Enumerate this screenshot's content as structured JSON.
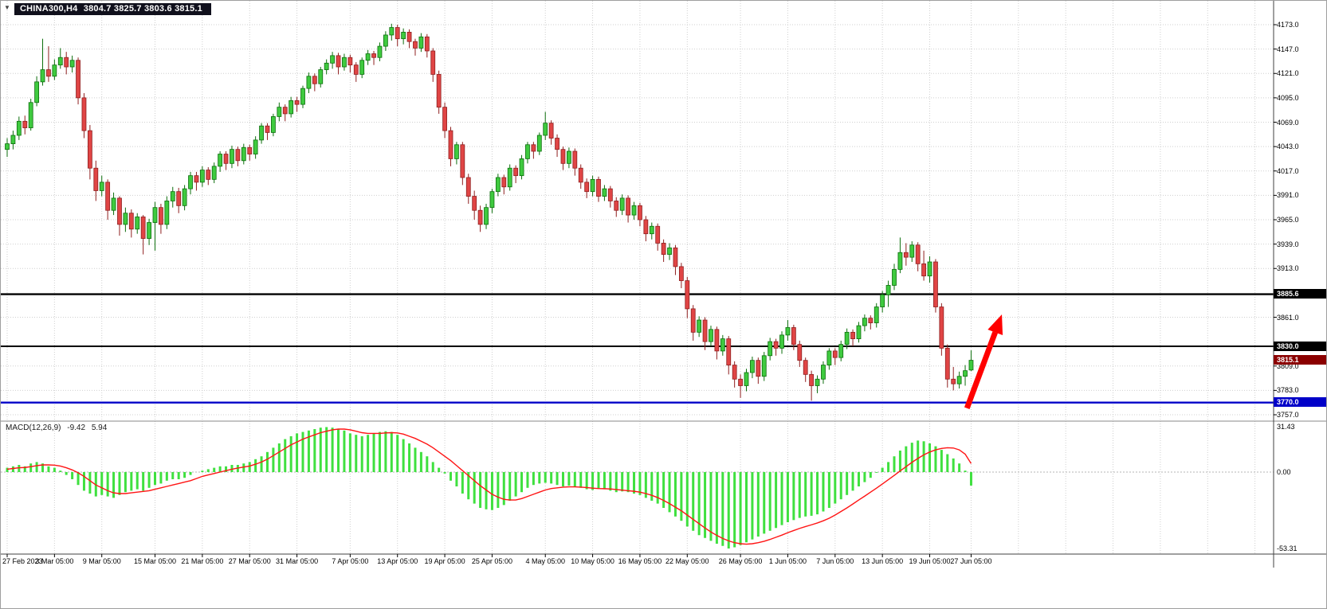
{
  "window": {
    "symbol": "CHINA300,H4",
    "ohlc_text": "3804.7 3825.7 3803.6 3815.1"
  },
  "indicator": {
    "label": "MACD(12,26,9)",
    "main_text": "-9.42",
    "signal_text": "5.94"
  },
  "colors": {
    "bull": "#3fca3f",
    "bull_border": "#0c6e0c",
    "bear": "#e04545",
    "bear_border": "#8f1f1f",
    "macd_hist": "#3fe03f",
    "macd_signal": "#ff1414",
    "grid": "#cfcfcf",
    "level_black": "#000000",
    "level_blue": "#0000c8",
    "tag_black_bg": "#000000",
    "tag_current_bg": "#8b0000",
    "tag_blue_bg": "#0000c8",
    "arrow": "#ff0000",
    "axis_text": "#000000",
    "title_bg": "#10101c",
    "title_text": "#ffffff"
  },
  "chart_data": {
    "type": "candlestick",
    "title": "CHINA300,H4",
    "timeframe": "H4",
    "current_bar": {
      "open": 3804.7,
      "high": 3825.7,
      "low": 3803.6,
      "close": 3815.1
    },
    "y_axis": {
      "min": 3757.0,
      "max": 4173.0,
      "ticks": [
        4173,
        4147,
        4121,
        4095,
        4069,
        4043,
        4017,
        3991,
        3965,
        3939,
        3913,
        3861,
        3809,
        3783,
        3757
      ],
      "tagged_levels": [
        {
          "value": 3885.6,
          "bg": "#000000"
        },
        {
          "value": 3830.0,
          "bg": "#000000"
        },
        {
          "value": 3815.1,
          "bg": "#8b0000"
        },
        {
          "value": 3770.0,
          "bg": "#0000c8"
        }
      ]
    },
    "horizontal_lines": [
      {
        "price": 3885.6,
        "color": "#000000",
        "width": 2.4
      },
      {
        "price": 3830.0,
        "color": "#000000",
        "width": 2
      },
      {
        "price": 3770.0,
        "color": "#0000c8",
        "width": 2.4
      }
    ],
    "x_axis": {
      "ticks": [
        {
          "label": "27 Feb 2023",
          "i": 0
        },
        {
          "label": "3 Mar 05:00",
          "i": 8
        },
        {
          "label": "9 Mar 05:00",
          "i": 16
        },
        {
          "label": "15 Mar 05:00",
          "i": 25
        },
        {
          "label": "21 Mar 05:00",
          "i": 33
        },
        {
          "label": "27 Mar 05:00",
          "i": 41
        },
        {
          "label": "31 Mar 05:00",
          "i": 49
        },
        {
          "label": "7 Apr 05:00",
          "i": 58
        },
        {
          "label": "13 Apr 05:00",
          "i": 66
        },
        {
          "label": "19 Apr 05:00",
          "i": 74
        },
        {
          "label": "25 Apr 05:00",
          "i": 82
        },
        {
          "label": "4 May 05:00",
          "i": 91
        },
        {
          "label": "10 May 05:00",
          "i": 99
        },
        {
          "label": "16 May 05:00",
          "i": 107
        },
        {
          "label": "22 May 05:00",
          "i": 115
        },
        {
          "label": "26 May 05:00",
          "i": 124
        },
        {
          "label": "1 Jun 05:00",
          "i": 132
        },
        {
          "label": "7 Jun 05:00",
          "i": 140
        },
        {
          "label": "13 Jun 05:00",
          "i": 148
        },
        {
          "label": "19 Jun 05:00",
          "i": 156
        },
        {
          "label": "27 Jun 05:00",
          "i": 163
        }
      ]
    },
    "candles_ohlc": [
      [
        4040,
        4052,
        4032,
        4046
      ],
      [
        4046,
        4060,
        4040,
        4055
      ],
      [
        4055,
        4075,
        4050,
        4070
      ],
      [
        4070,
        4076,
        4056,
        4063
      ],
      [
        4063,
        4094,
        4060,
        4090
      ],
      [
        4090,
        4118,
        4086,
        4112
      ],
      [
        4112,
        4158,
        4108,
        4125
      ],
      [
        4125,
        4150,
        4112,
        4118
      ],
      [
        4118,
        4136,
        4114,
        4130
      ],
      [
        4130,
        4148,
        4126,
        4138
      ],
      [
        4138,
        4144,
        4120,
        4128
      ],
      [
        4128,
        4140,
        4122,
        4135
      ],
      [
        4135,
        4138,
        4088,
        4095
      ],
      [
        4095,
        4100,
        4052,
        4060
      ],
      [
        4060,
        4066,
        4008,
        4020
      ],
      [
        4020,
        4028,
        3985,
        3996
      ],
      [
        3996,
        4012,
        3990,
        4005
      ],
      [
        4005,
        4008,
        3965,
        3975
      ],
      [
        3975,
        3994,
        3970,
        3988
      ],
      [
        3988,
        3990,
        3948,
        3960
      ],
      [
        3960,
        3978,
        3952,
        3972
      ],
      [
        3972,
        3976,
        3946,
        3955
      ],
      [
        3955,
        3972,
        3950,
        3968
      ],
      [
        3968,
        3970,
        3928,
        3945
      ],
      [
        3945,
        3966,
        3938,
        3962
      ],
      [
        3962,
        3984,
        3932,
        3978
      ],
      [
        3978,
        3982,
        3950,
        3960
      ],
      [
        3960,
        3990,
        3955,
        3985
      ],
      [
        3985,
        4000,
        3978,
        3995
      ],
      [
        3995,
        3999,
        3972,
        3980
      ],
      [
        3980,
        4002,
        3975,
        3998
      ],
      [
        3998,
        4016,
        3992,
        4012
      ],
      [
        4012,
        4016,
        3996,
        4005
      ],
      [
        4005,
        4022,
        4000,
        4018
      ],
      [
        4018,
        4021,
        4002,
        4008
      ],
      [
        4008,
        4026,
        4004,
        4022
      ],
      [
        4022,
        4038,
        4016,
        4035
      ],
      [
        4035,
        4038,
        4018,
        4025
      ],
      [
        4025,
        4044,
        4020,
        4040
      ],
      [
        4040,
        4043,
        4022,
        4028
      ],
      [
        4028,
        4046,
        4024,
        4042
      ],
      [
        4042,
        4045,
        4028,
        4035
      ],
      [
        4035,
        4054,
        4030,
        4050
      ],
      [
        4050,
        4068,
        4046,
        4065
      ],
      [
        4065,
        4068,
        4050,
        4058
      ],
      [
        4058,
        4078,
        4054,
        4075
      ],
      [
        4075,
        4090,
        4070,
        4085
      ],
      [
        4085,
        4088,
        4070,
        4078
      ],
      [
        4078,
        4096,
        4074,
        4092
      ],
      [
        4092,
        4096,
        4080,
        4088
      ],
      [
        4088,
        4108,
        4084,
        4105
      ],
      [
        4105,
        4122,
        4100,
        4118
      ],
      [
        4118,
        4121,
        4102,
        4110
      ],
      [
        4110,
        4128,
        4106,
        4125
      ],
      [
        4125,
        4136,
        4120,
        4132
      ],
      [
        4132,
        4144,
        4126,
        4140
      ],
      [
        4140,
        4143,
        4120,
        4128
      ],
      [
        4128,
        4142,
        4124,
        4138
      ],
      [
        4138,
        4141,
        4122,
        4130
      ],
      [
        4130,
        4133,
        4112,
        4120
      ],
      [
        4120,
        4138,
        4116,
        4135
      ],
      [
        4135,
        4146,
        4130,
        4142
      ],
      [
        4142,
        4145,
        4130,
        4138
      ],
      [
        4138,
        4154,
        4134,
        4150
      ],
      [
        4150,
        4166,
        4145,
        4162
      ],
      [
        4162,
        4174,
        4156,
        4170
      ],
      [
        4170,
        4173,
        4150,
        4158
      ],
      [
        4158,
        4169,
        4152,
        4165
      ],
      [
        4165,
        4168,
        4148,
        4155
      ],
      [
        4155,
        4158,
        4140,
        4148
      ],
      [
        4148,
        4164,
        4144,
        4160
      ],
      [
        4160,
        4163,
        4138,
        4145
      ],
      [
        4145,
        4148,
        4112,
        4120
      ],
      [
        4120,
        4124,
        4078,
        4085
      ],
      [
        4085,
        4090,
        4052,
        4060
      ],
      [
        4060,
        4064,
        4022,
        4030
      ],
      [
        4030,
        4048,
        4024,
        4045
      ],
      [
        4045,
        4048,
        4002,
        4010
      ],
      [
        4010,
        4014,
        3982,
        3990
      ],
      [
        3990,
        3996,
        3965,
        3975
      ],
      [
        3975,
        3980,
        3952,
        3960
      ],
      [
        3960,
        3982,
        3955,
        3978
      ],
      [
        3978,
        3998,
        3972,
        3995
      ],
      [
        3995,
        4014,
        3990,
        4010
      ],
      [
        4010,
        4013,
        3992,
        4000
      ],
      [
        4000,
        4024,
        3996,
        4020
      ],
      [
        4020,
        4023,
        4004,
        4012
      ],
      [
        4012,
        4034,
        4008,
        4030
      ],
      [
        4030,
        4048,
        4025,
        4045
      ],
      [
        4045,
        4048,
        4030,
        4038
      ],
      [
        4038,
        4058,
        4034,
        4055
      ],
      [
        4055,
        4080,
        4050,
        4068
      ],
      [
        4068,
        4071,
        4045,
        4052
      ],
      [
        4052,
        4056,
        4032,
        4040
      ],
      [
        4040,
        4043,
        4018,
        4025
      ],
      [
        4025,
        4042,
        4020,
        4038
      ],
      [
        4038,
        4041,
        4012,
        4020
      ],
      [
        4020,
        4024,
        3998,
        4005
      ],
      [
        4005,
        4009,
        3988,
        3995
      ],
      [
        3995,
        4012,
        3990,
        4008
      ],
      [
        4008,
        4011,
        3984,
        3990
      ],
      [
        3990,
        4002,
        3985,
        3998
      ],
      [
        3998,
        4001,
        3978,
        3985
      ],
      [
        3985,
        3989,
        3968,
        3975
      ],
      [
        3975,
        3992,
        3970,
        3988
      ],
      [
        3988,
        3991,
        3962,
        3970
      ],
      [
        3970,
        3984,
        3965,
        3980
      ],
      [
        3980,
        3983,
        3958,
        3965
      ],
      [
        3965,
        3969,
        3942,
        3950
      ],
      [
        3950,
        3962,
        3944,
        3958
      ],
      [
        3958,
        3961,
        3932,
        3940
      ],
      [
        3940,
        3944,
        3920,
        3928
      ],
      [
        3928,
        3940,
        3922,
        3935
      ],
      [
        3935,
        3938,
        3906,
        3915
      ],
      [
        3915,
        3919,
        3892,
        3900
      ],
      [
        3900,
        3904,
        3860,
        3870
      ],
      [
        3870,
        3874,
        3836,
        3845
      ],
      [
        3845,
        3862,
        3840,
        3858
      ],
      [
        3858,
        3861,
        3826,
        3835
      ],
      [
        3835,
        3852,
        3830,
        3848
      ],
      [
        3848,
        3851,
        3816,
        3825
      ],
      [
        3825,
        3842,
        3820,
        3838
      ],
      [
        3838,
        3841,
        3800,
        3810
      ],
      [
        3810,
        3814,
        3786,
        3795
      ],
      [
        3795,
        3800,
        3775,
        3788
      ],
      [
        3788,
        3806,
        3782,
        3802
      ],
      [
        3802,
        3819,
        3796,
        3815
      ],
      [
        3815,
        3818,
        3790,
        3798
      ],
      [
        3798,
        3824,
        3793,
        3820
      ],
      [
        3820,
        3839,
        3815,
        3835
      ],
      [
        3835,
        3838,
        3820,
        3828
      ],
      [
        3828,
        3846,
        3822,
        3842
      ],
      [
        3842,
        3858,
        3836,
        3850
      ],
      [
        3850,
        3853,
        3826,
        3832
      ],
      [
        3832,
        3836,
        3808,
        3815
      ],
      [
        3815,
        3818,
        3792,
        3800
      ],
      [
        3800,
        3804,
        3772,
        3788
      ],
      [
        3788,
        3799,
        3780,
        3795
      ],
      [
        3795,
        3814,
        3790,
        3810
      ],
      [
        3810,
        3828,
        3805,
        3825
      ],
      [
        3825,
        3828,
        3810,
        3818
      ],
      [
        3818,
        3836,
        3814,
        3832
      ],
      [
        3832,
        3849,
        3827,
        3845
      ],
      [
        3845,
        3848,
        3830,
        3838
      ],
      [
        3838,
        3856,
        3834,
        3852
      ],
      [
        3852,
        3864,
        3846,
        3860
      ],
      [
        3860,
        3863,
        3848,
        3855
      ],
      [
        3855,
        3876,
        3850,
        3872
      ],
      [
        3872,
        3889,
        3866,
        3885
      ],
      [
        3885,
        3900,
        3872,
        3895
      ],
      [
        3895,
        3918,
        3890,
        3912
      ],
      [
        3912,
        3946,
        3908,
        3930
      ],
      [
        3930,
        3940,
        3916,
        3925
      ],
      [
        3925,
        3942,
        3920,
        3938
      ],
      [
        3938,
        3941,
        3910,
        3918
      ],
      [
        3918,
        3932,
        3900,
        3905
      ],
      [
        3905,
        3926,
        3898,
        3920
      ],
      [
        3920,
        3923,
        3866,
        3872
      ],
      [
        3872,
        3876,
        3820,
        3828
      ],
      [
        3828,
        3832,
        3786,
        3795
      ],
      [
        3795,
        3808,
        3783,
        3790
      ],
      [
        3790,
        3803,
        3785,
        3798
      ],
      [
        3798,
        3810,
        3788,
        3804
      ],
      [
        3804.7,
        3825.7,
        3803.6,
        3815.1
      ]
    ],
    "macd": {
      "type": "bar",
      "scale_labels": [
        {
          "label": "31.43",
          "v": 31.43
        },
        {
          "label": "0.00",
          "v": 0
        },
        {
          "label": "-53.31",
          "v": -53.31
        }
      ],
      "histogram": [
        3,
        4,
        5,
        4,
        6,
        7,
        6,
        4,
        3,
        1,
        -2,
        -5,
        -9,
        -13,
        -15,
        -17,
        -16,
        -17,
        -18,
        -16,
        -14,
        -13,
        -12,
        -13,
        -11,
        -9,
        -8,
        -6,
        -5,
        -5,
        -4,
        -2,
        0,
        1,
        2,
        3,
        4,
        4,
        5,
        5,
        6,
        7,
        9,
        11,
        14,
        17,
        20,
        23,
        25,
        27,
        28,
        29,
        30,
        31,
        31.4,
        31,
        30,
        29,
        27,
        26,
        25,
        26,
        27,
        28,
        28.5,
        28,
        26,
        23,
        20,
        17,
        14,
        11,
        7,
        3,
        -1,
        -6,
        -10,
        -15,
        -19,
        -22,
        -25,
        -26,
        -26.5,
        -25,
        -23,
        -20,
        -17,
        -14,
        -11,
        -9,
        -8,
        -7.5,
        -8,
        -9,
        -10,
        -9.5,
        -10,
        -11,
        -12,
        -12.5,
        -11.5,
        -12,
        -13,
        -14,
        -13.5,
        -14,
        -15,
        -16,
        -18,
        -20,
        -22,
        -25,
        -28,
        -31,
        -34,
        -38,
        -41,
        -44,
        -46,
        -48,
        -50,
        -51.5,
        -53.3,
        -52.5,
        -51,
        -49,
        -47,
        -45,
        -43,
        -41,
        -39,
        -37,
        -35,
        -33.5,
        -32,
        -31,
        -30.5,
        -29.5,
        -27.5,
        -25,
        -22,
        -19,
        -16,
        -13,
        -10,
        -7,
        -4,
        -0.5,
        3,
        7,
        11,
        15,
        18,
        20.5,
        22,
        21.5,
        20,
        18,
        15.5,
        12.5,
        9.5,
        6,
        1,
        -9.4
      ],
      "signal": [
        2,
        2.5,
        3,
        3.2,
        3.8,
        4.5,
        5,
        5,
        4.8,
        4.2,
        3,
        1.5,
        -0.5,
        -3,
        -6,
        -9,
        -11,
        -13,
        -14.5,
        -15,
        -15,
        -14.5,
        -14,
        -13.5,
        -13,
        -12,
        -11,
        -10,
        -9,
        -8,
        -7,
        -6,
        -4.5,
        -3,
        -2,
        -1,
        0,
        1,
        2,
        2.8,
        3.5,
        4.2,
        5.5,
        7,
        9,
        11.5,
        14,
        16.5,
        19,
        21,
        23,
        24.5,
        26,
        27.5,
        28.5,
        29.5,
        30,
        30,
        29.5,
        28.5,
        27.5,
        27,
        27,
        27,
        27.3,
        27.5,
        27.3,
        26.5,
        25,
        23.5,
        21.5,
        19.5,
        17,
        14,
        11,
        8,
        4.5,
        1,
        -2.5,
        -6,
        -9.5,
        -12.5,
        -15.5,
        -17.5,
        -19,
        -19.5,
        -19.5,
        -18.5,
        -17,
        -15.5,
        -14,
        -12.5,
        -11.5,
        -11,
        -10.5,
        -10.3,
        -10.3,
        -10.5,
        -10.8,
        -11.2,
        -11.5,
        -11.6,
        -11.8,
        -12.2,
        -12.6,
        -13,
        -13.4,
        -14,
        -15,
        -16.2,
        -17.8,
        -19.8,
        -22,
        -24.5,
        -27,
        -30,
        -33,
        -36,
        -39,
        -41.8,
        -44.2,
        -46.3,
        -48,
        -49.3,
        -50,
        -50.3,
        -50,
        -49.3,
        -48.3,
        -47,
        -45.5,
        -44,
        -42.3,
        -40.8,
        -39.3,
        -38,
        -36.8,
        -35.5,
        -34,
        -32.2,
        -30,
        -27.5,
        -25,
        -22.3,
        -19.5,
        -16.8,
        -14,
        -11.2,
        -8.3,
        -5.3,
        -2.3,
        0.8,
        3.8,
        6.8,
        9.5,
        12,
        14,
        15.5,
        16.5,
        17,
        16.8,
        15.5,
        12.5,
        6
      ]
    },
    "annotation_arrow": {
      "from_bar": 162.3,
      "from_price": 3764,
      "to_bar": 168.2,
      "to_price": 3864
    }
  }
}
